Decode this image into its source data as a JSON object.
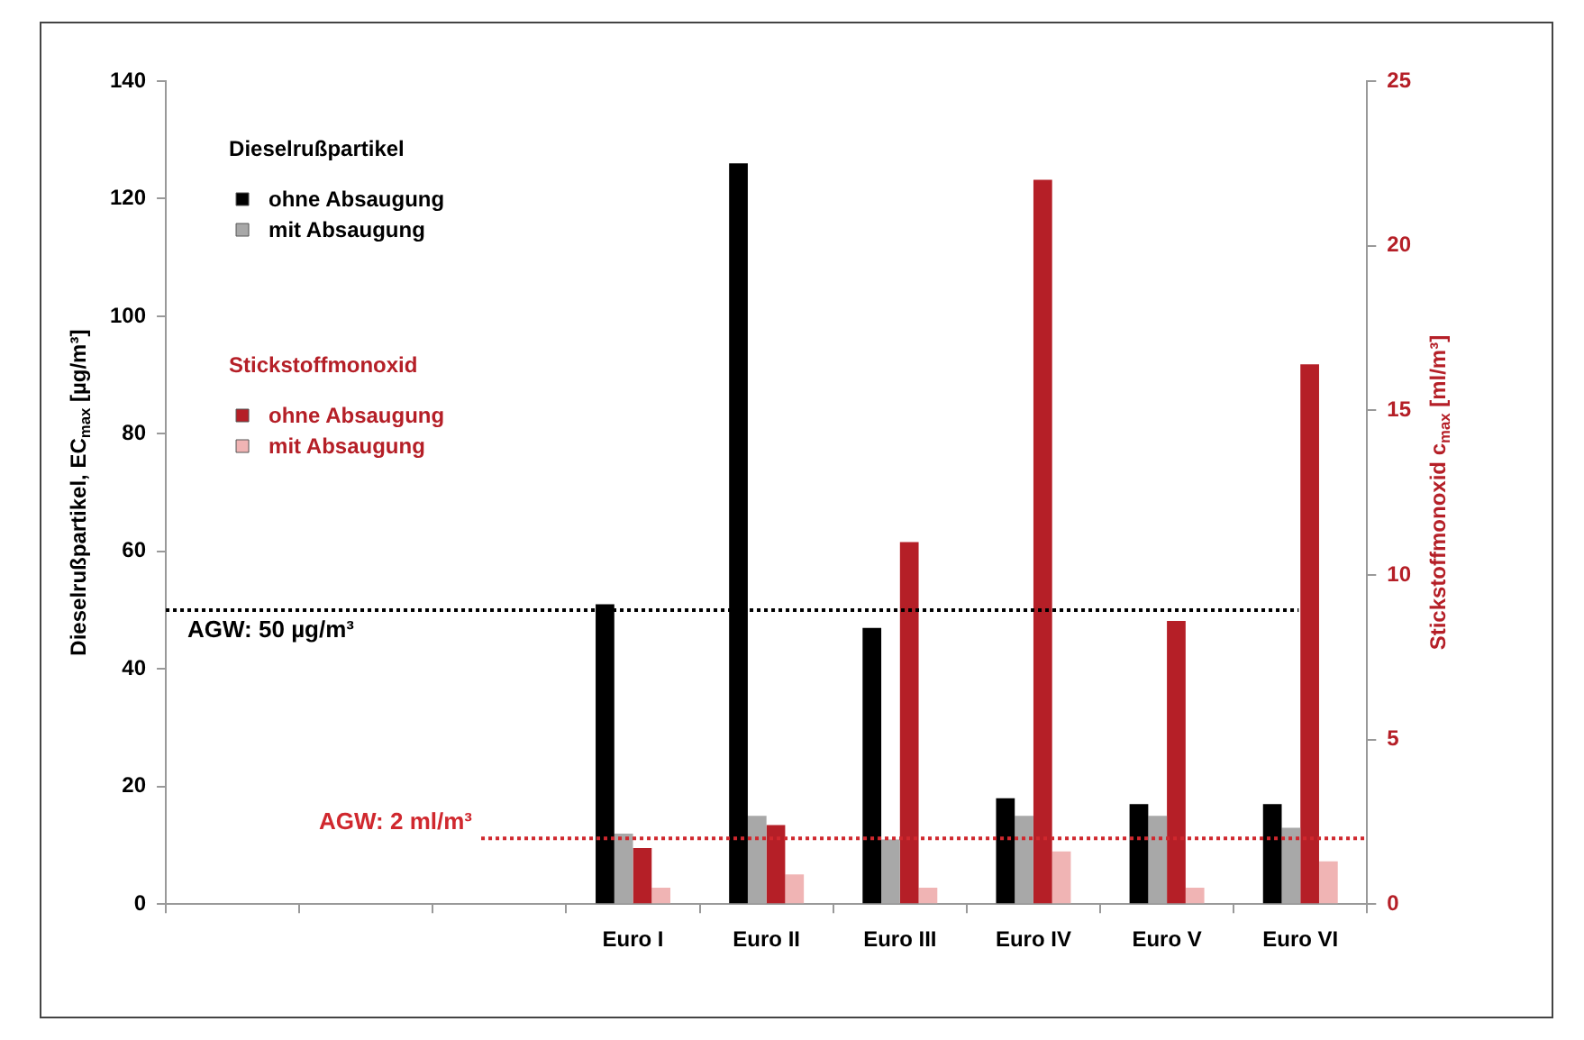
{
  "chart_data": {
    "type": "bar",
    "ylabel": "Dieselrußpartikel, EC$_{max}$ [µg/m³]",
    "y2label": "Stickstoffmonoxid c$_{max}$ [ml/m³]",
    "categories": [
      null,
      null,
      null,
      "Euro I",
      "Euro II",
      "Euro III",
      "Euro IV",
      "Euro V",
      "Euro VI"
    ],
    "series": [
      {
        "name": "ohne Absaugung",
        "color": "#000000",
        "values": [
          null,
          null,
          null,
          51,
          126,
          47,
          18,
          17,
          17
        ]
      },
      {
        "name": "mit Absaugung",
        "color": "#a8a8a8",
        "values": [
          null,
          null,
          null,
          12,
          15,
          11,
          15,
          15,
          13
        ]
      },
      {
        "name": "ohne Absaugung",
        "color": "#b51f27",
        "axis": "y2",
        "values": [
          null,
          null,
          null,
          1.7,
          2.4,
          11,
          22,
          8.6,
          16.4
        ]
      },
      {
        "name": "mit Absaugung",
        "color": "#f0b4b4",
        "axis": "y2",
        "values": [
          null,
          null,
          null,
          0.5,
          0.9,
          0.5,
          1.6,
          0.5,
          1.3
        ]
      }
    ],
    "ylim": [
      0,
      140
    ],
    "yticks": [
      0,
      20,
      40,
      60,
      80,
      100,
      120,
      140
    ],
    "y2lim": [
      0,
      25
    ],
    "y2ticks": [
      0,
      5,
      10,
      15,
      20,
      25
    ],
    "ref_lines": [
      {
        "axis": "y",
        "value": 50,
        "label": "AGW: 50 µg/m³",
        "color": "#000000",
        "line_style": "dotted"
      },
      {
        "axis": "y2",
        "value": 2,
        "label": "AGW: 2 ml/m³",
        "color": "#d0282e",
        "line_style": "dotted"
      }
    ],
    "annotations": [
      "Dieselrußpartikel",
      "Stickstoffmonoxid"
    ],
    "legend": "top left",
    "grid": false
  }
}
